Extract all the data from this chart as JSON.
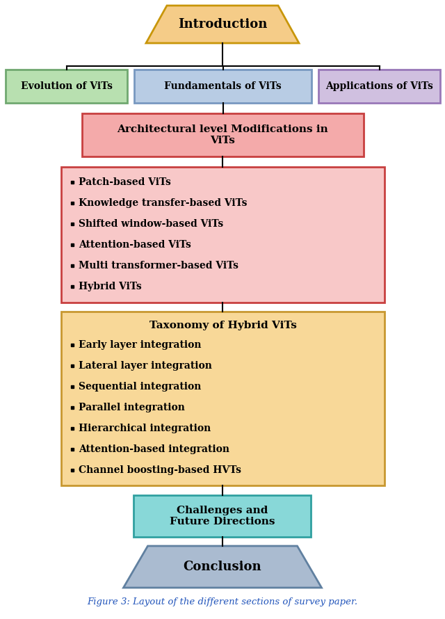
{
  "title": "Introduction",
  "intro_color": "#F5CC88",
  "intro_border": "#C8960A",
  "branch_boxes": [
    {
      "label": "Evolution of ViTs",
      "color": "#B8E0B0",
      "border": "#70A870"
    },
    {
      "label": "Fundamentals of ViTs",
      "color": "#B8CCE4",
      "border": "#7898C0"
    },
    {
      "label": "Applications of ViTs",
      "color": "#D0C0E0",
      "border": "#9878B8"
    }
  ],
  "arch_box": {
    "label": "Architectural level Modifications in\nViTs",
    "color": "#F4AAAA",
    "border": "#C84040"
  },
  "list_box": {
    "items": [
      "Patch-based ViTs",
      "Knowledge transfer-based ViTs",
      "Shifted window-based ViTs",
      "Attention-based ViTs",
      "Multi transformer-based ViTs",
      "Hybrid ViTs"
    ],
    "color": "#F8C8C8",
    "border": "#C84040"
  },
  "taxonomy_box": {
    "title": "Taxonomy of Hybrid ViTs",
    "items": [
      "Early layer integration",
      "Lateral layer integration",
      "Sequential integration",
      "Parallel integration",
      "Hierarchical integration",
      "Attention-based integration",
      "Channel boosting-based HVTs"
    ],
    "color": "#F8D898",
    "border": "#C89830"
  },
  "challenges_box": {
    "label": "Challenges and\nFuture Directions",
    "color": "#88D8D8",
    "border": "#30A0A0"
  },
  "conclusion_label": "Conclusion",
  "conclusion_color": "#AABBD0",
  "conclusion_border": "#6080A0",
  "caption": "Figure 3: Layout of the different sections of survey paper.",
  "bg_color": "#FFFFFF",
  "line_color": "#000000"
}
